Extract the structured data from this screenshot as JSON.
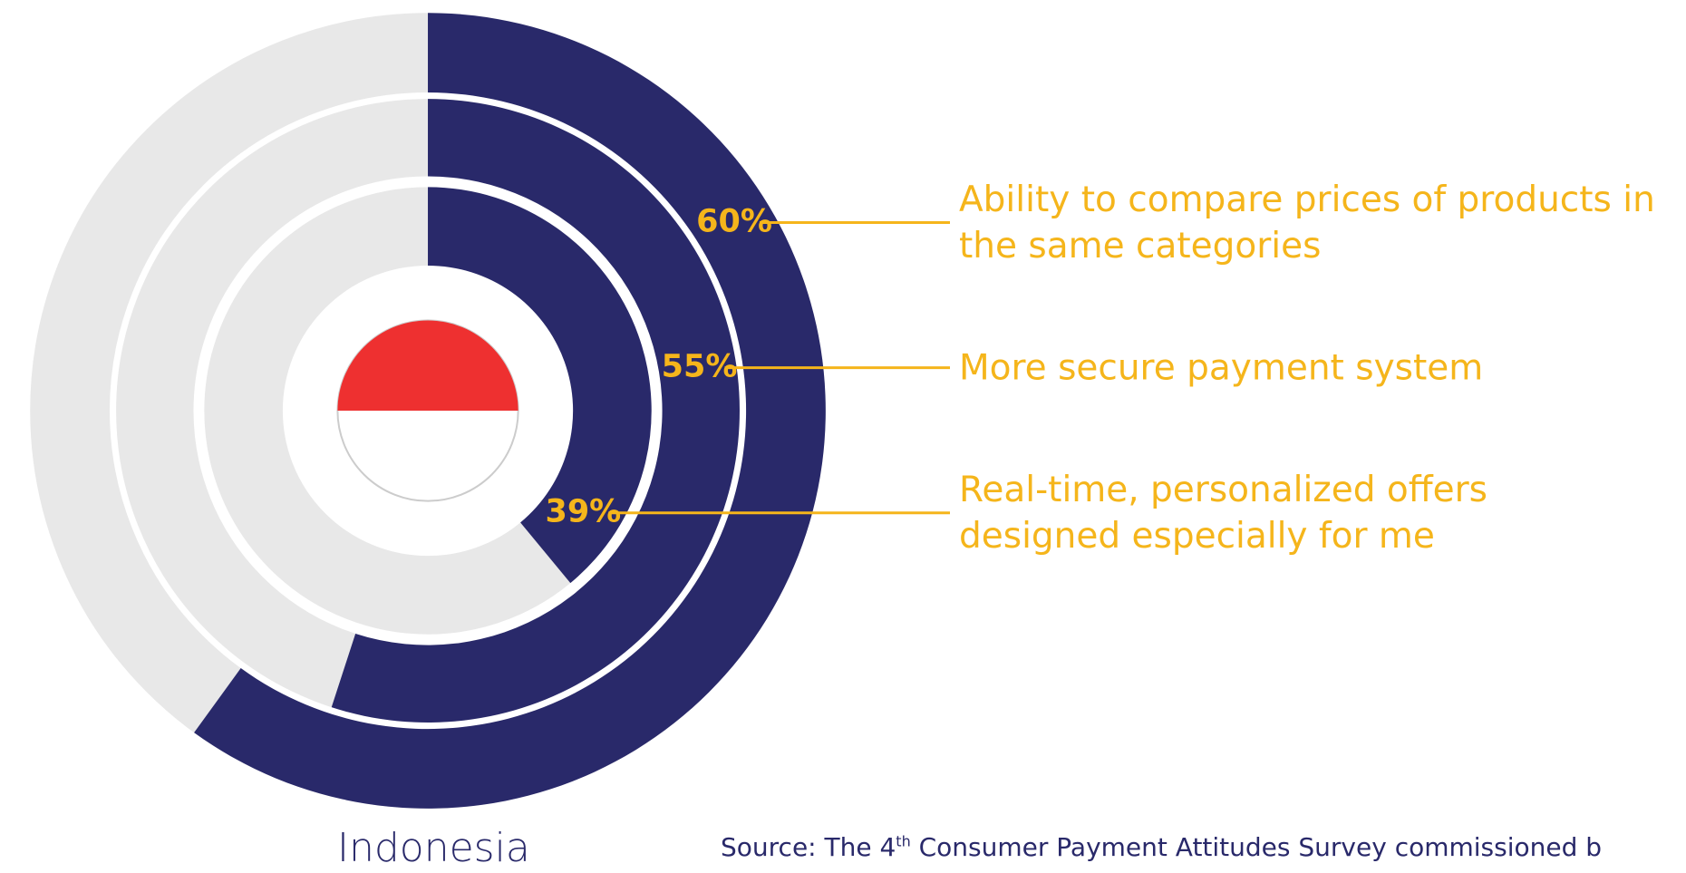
{
  "chart_data": {
    "type": "radial_bar",
    "title": "Indonesia",
    "categories": [
      "Ability to compare prices of products in the same categories",
      "More secure payment system",
      "Real-time, personalized offers designed especially for me"
    ],
    "values": [
      60,
      55,
      39
    ],
    "value_labels": [
      "60%",
      "55%",
      "39%"
    ],
    "ylim": [
      0,
      100
    ],
    "color": "#29296a",
    "track_color": "#e8e8e8",
    "label_color": "#f5b51b",
    "source": [
      "Source: The 4",
      "th",
      " Consumer Payment Attitudes Survey commissioned b"
    ]
  }
}
